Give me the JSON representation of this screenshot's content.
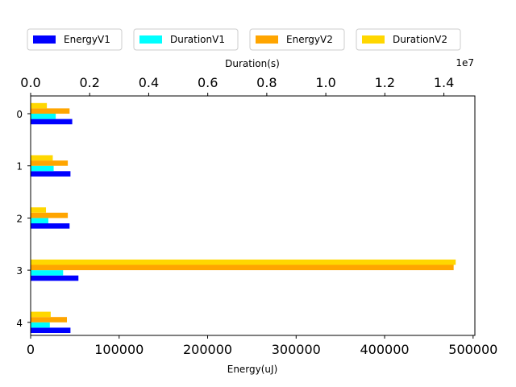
{
  "chart_data": {
    "type": "bar",
    "orientation": "horizontal",
    "categories": [
      "0",
      "1",
      "2",
      "3",
      "4"
    ],
    "series": [
      {
        "name": "EnergyV1",
        "axis": "energy",
        "color": "#0000ff",
        "values": [
          47000,
          45000,
          44000,
          54000,
          45000
        ]
      },
      {
        "name": "DurationV1",
        "axis": "duration",
        "color": "#00ffff",
        "values": [
          850000,
          780000,
          600000,
          1100000,
          650000
        ]
      },
      {
        "name": "EnergyV2",
        "axis": "energy",
        "color": "#ffa500",
        "values": [
          44000,
          42000,
          42000,
          478000,
          41000
        ]
      },
      {
        "name": "DurationV2",
        "axis": "duration",
        "color": "#ffd700",
        "values": [
          550000,
          750000,
          520000,
          14400000,
          680000
        ]
      }
    ],
    "xlabel": "Energy(uJ)",
    "x2label": "Duration(s)",
    "x2_offset_label": "1e7",
    "xlim": [
      0,
      502000
    ],
    "x2lim": [
      0,
      15050000.0
    ],
    "xticks": [
      0,
      100000,
      200000,
      300000,
      400000,
      500000
    ],
    "x2ticks": [
      0,
      2000000,
      4000000,
      6000000,
      8000000,
      10000000,
      12000000,
      14000000
    ],
    "x2tick_labels": [
      "0.0",
      "0.2",
      "0.4",
      "0.6",
      "0.8",
      "1.0",
      "1.2",
      "1.4"
    ],
    "legend_position": "top",
    "grid": false
  }
}
